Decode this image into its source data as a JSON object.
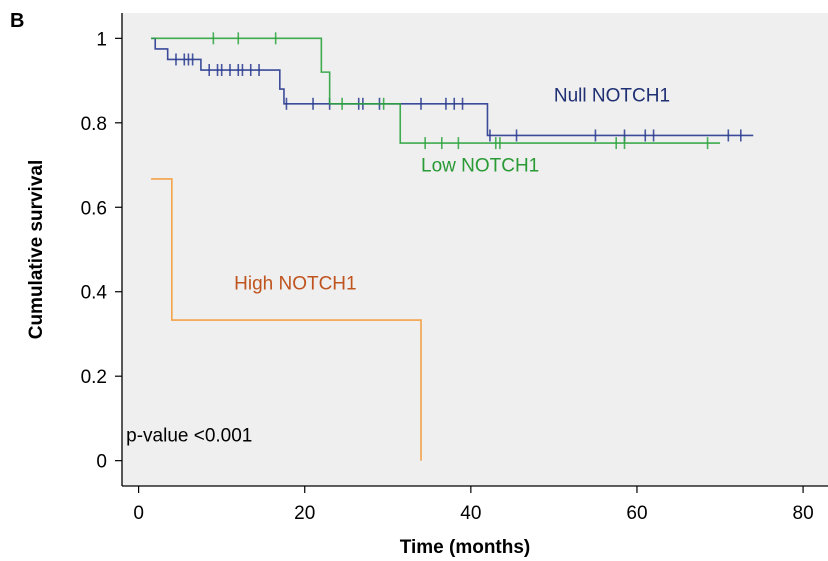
{
  "chart_data": {
    "type": "line",
    "panel_label": "B",
    "xlabel": "Time (months)",
    "ylabel": "Cumulative survival",
    "xlim": [
      -2,
      83
    ],
    "ylim": [
      -0.06,
      1.06
    ],
    "xticks": [
      0,
      20,
      40,
      60,
      80
    ],
    "yticks": [
      0,
      0.2,
      0.4,
      0.6,
      0.8,
      1
    ],
    "xtick_labels": [
      "0",
      "20",
      "40",
      "60",
      "80"
    ],
    "ytick_labels": [
      "0",
      "0.2",
      "0.4",
      "0.6",
      "0.8",
      "1"
    ],
    "background": "#efefef",
    "series": [
      {
        "name": "Null NOTCH1",
        "color": "#28398f",
        "steps": [
          [
            1.5,
            1.0
          ],
          [
            2,
            0.975
          ],
          [
            3.5,
            0.95
          ],
          [
            7.5,
            0.925
          ],
          [
            17,
            0.88
          ],
          [
            17.5,
            0.845
          ],
          [
            42,
            0.77
          ],
          [
            74,
            0.77
          ]
        ],
        "censored": [
          4.5,
          5.5,
          6,
          6.5,
          8.5,
          9.5,
          10,
          11,
          12,
          12.5,
          13.5,
          14.5,
          17.8,
          21,
          23,
          26.5,
          27,
          29,
          34,
          37,
          38,
          39,
          42.3,
          45.5,
          55,
          58.5,
          61,
          62,
          71,
          72.5
        ]
      },
      {
        "name": "Low NOTCH1",
        "color": "#2ba33d",
        "steps": [
          [
            1.5,
            1.0
          ],
          [
            22,
            0.92
          ],
          [
            23,
            0.845
          ],
          [
            31.5,
            0.752
          ],
          [
            70,
            0.752
          ]
        ],
        "censored": [
          9,
          12,
          16.5,
          24.5,
          29.5,
          34.5,
          36.5,
          38.5,
          43,
          43.5,
          57.5,
          58.5,
          68.5
        ]
      },
      {
        "name": "High NOTCH1",
        "color": "#f39a35",
        "steps": [
          [
            1.5,
            0.667
          ],
          [
            4,
            0.333
          ],
          [
            34,
            0.0
          ]
        ],
        "censored": []
      }
    ],
    "annotations": [
      {
        "text": "Null NOTCH1",
        "color": "#1f2f73",
        "x": 50,
        "y": 0.85
      },
      {
        "text": "Low NOTCH1",
        "color": "#2a9a35",
        "x": 34,
        "y": 0.685
      },
      {
        "text": "High NOTCH1",
        "color": "#c0541f",
        "x": 11.5,
        "y": 0.405
      },
      {
        "text": "p-value <0.001",
        "color": "#000000",
        "x": -1.5,
        "y": 0.045
      }
    ]
  }
}
